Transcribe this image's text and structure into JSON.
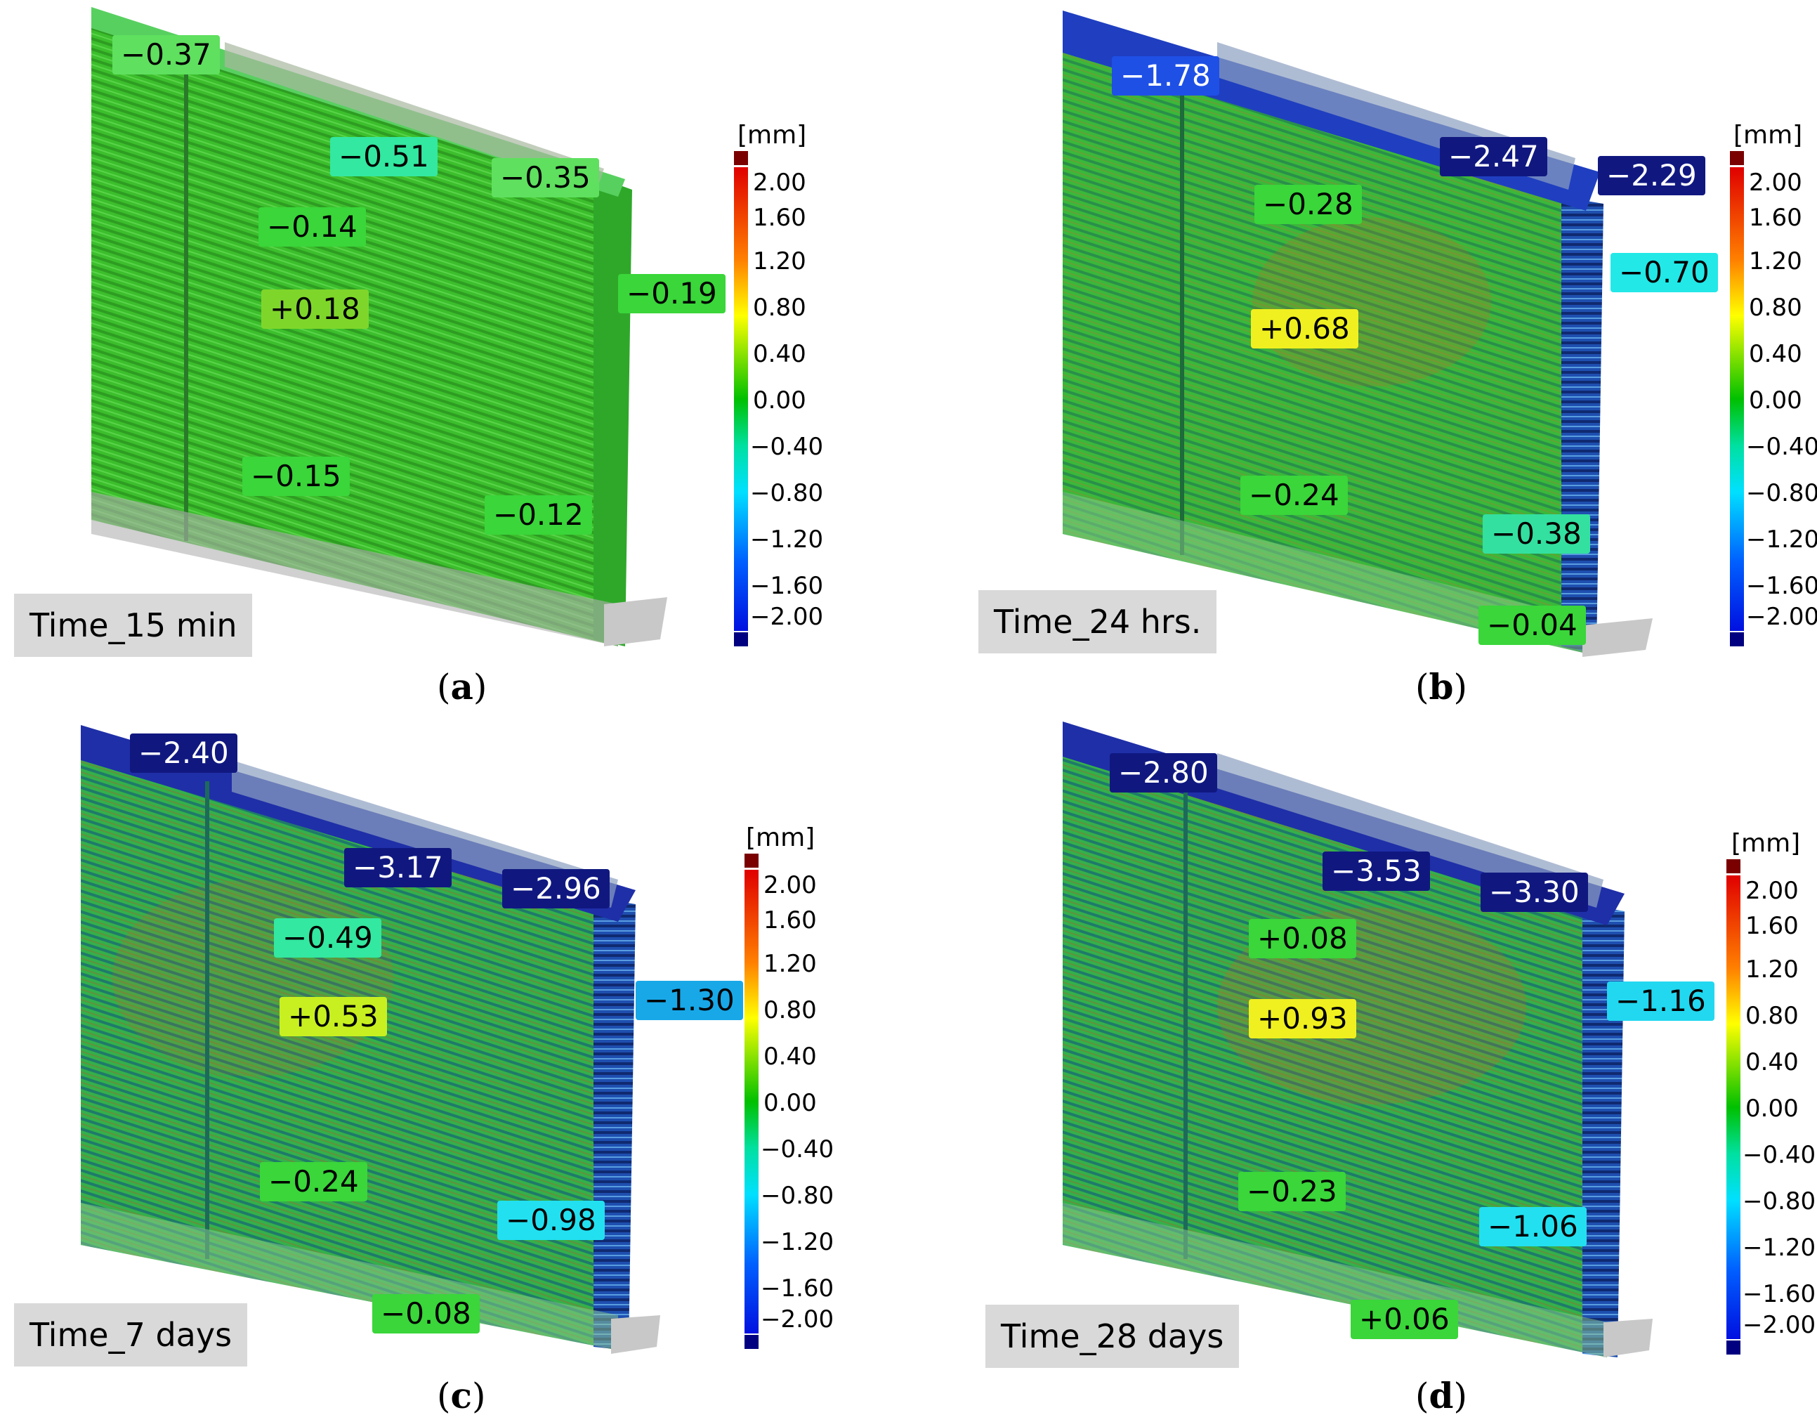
{
  "colors": {
    "high_cap": "#7a0000",
    "low_cap": "#000080",
    "wall_green": "#3fbf2a",
    "label_bg": "#d9d9d9"
  },
  "colorbar": {
    "unit": "[mm]",
    "ticks": [
      "2.00",
      "1.60",
      "1.20",
      "0.80",
      "0.40",
      "0.00",
      "−0.40",
      "−0.80",
      "−1.20",
      "−1.60",
      "−2.00"
    ]
  },
  "panels": [
    {
      "letter": "a",
      "time_label": "Time_15 min",
      "annotations": [
        {
          "text": "−0.37",
          "color": "#5fe05f"
        },
        {
          "text": "−0.51",
          "color": "#33e8a0"
        },
        {
          "text": "−0.35",
          "color": "#5fe05f"
        },
        {
          "text": "−0.14",
          "color": "#3ad63a"
        },
        {
          "text": "−0.19",
          "color": "#3ad63a"
        },
        {
          "text": "+0.18",
          "color": "#7fd62a"
        },
        {
          "text": "−0.15",
          "color": "#3ad63a"
        },
        {
          "text": "−0.12",
          "color": "#3ad63a"
        }
      ]
    },
    {
      "letter": "b",
      "time_label": "Time_24 hrs.",
      "annotations": [
        {
          "text": "−1.78",
          "color": "#1e50e6"
        },
        {
          "text": "−2.47",
          "color": "#101880"
        },
        {
          "text": "−2.29",
          "color": "#101880"
        },
        {
          "text": "−0.28",
          "color": "#3ad63a"
        },
        {
          "text": "−0.70",
          "color": "#22e8e8"
        },
        {
          "text": "+0.68",
          "color": "#f0f020"
        },
        {
          "text": "−0.24",
          "color": "#3ad63a"
        },
        {
          "text": "−0.38",
          "color": "#33e0a0"
        },
        {
          "text": "−0.04",
          "color": "#3ad63a"
        }
      ]
    },
    {
      "letter": "c",
      "time_label": "Time_7 days",
      "annotations": [
        {
          "text": "−2.40",
          "color": "#101880"
        },
        {
          "text": "−3.17",
          "color": "#101880"
        },
        {
          "text": "−2.96",
          "color": "#101880"
        },
        {
          "text": "−0.49",
          "color": "#33e8a0"
        },
        {
          "text": "−1.30",
          "color": "#18a8e8"
        },
        {
          "text": "+0.53",
          "color": "#c8f020"
        },
        {
          "text": "−0.24",
          "color": "#3ad63a"
        },
        {
          "text": "−0.98",
          "color": "#22e0f0"
        },
        {
          "text": "−0.08",
          "color": "#3ad63a"
        }
      ]
    },
    {
      "letter": "d",
      "time_label": "Time_28 days",
      "annotations": [
        {
          "text": "−2.80",
          "color": "#101880"
        },
        {
          "text": "−3.53",
          "color": "#101880"
        },
        {
          "text": "−3.30",
          "color": "#101880"
        },
        {
          "text": "+0.08",
          "color": "#3ad63a"
        },
        {
          "text": "−1.16",
          "color": "#22d8f0"
        },
        {
          "text": "+0.93",
          "color": "#f0f020"
        },
        {
          "text": "−0.23",
          "color": "#3ad63a"
        },
        {
          "text": "−1.06",
          "color": "#22e0f0"
        },
        {
          "text": "+0.06",
          "color": "#3ad63a"
        }
      ]
    }
  ]
}
